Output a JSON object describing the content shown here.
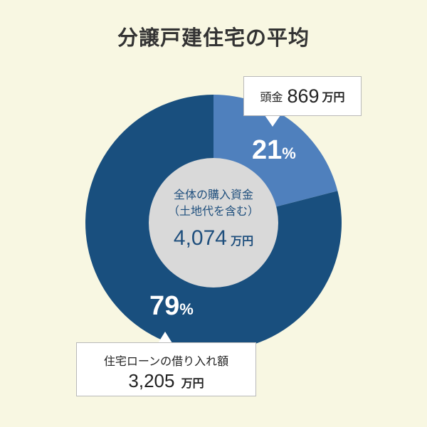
{
  "chart_data": {
    "type": "pie",
    "title": "分譲戸建住宅の平均",
    "slices": [
      {
        "label": "頭金",
        "amount": "869",
        "percent": 21,
        "color": "#4f80bd"
      },
      {
        "label": "住宅ローンの借り入れ額",
        "amount": "3,205",
        "percent": 79,
        "color": "#194f7e"
      }
    ],
    "center": {
      "line1": "全体の購入資金",
      "line2": "（土地代を含む）",
      "amount": "4,074",
      "color": "#d9d9d9"
    },
    "amount_unit": "万円",
    "percent_unit": "%"
  }
}
